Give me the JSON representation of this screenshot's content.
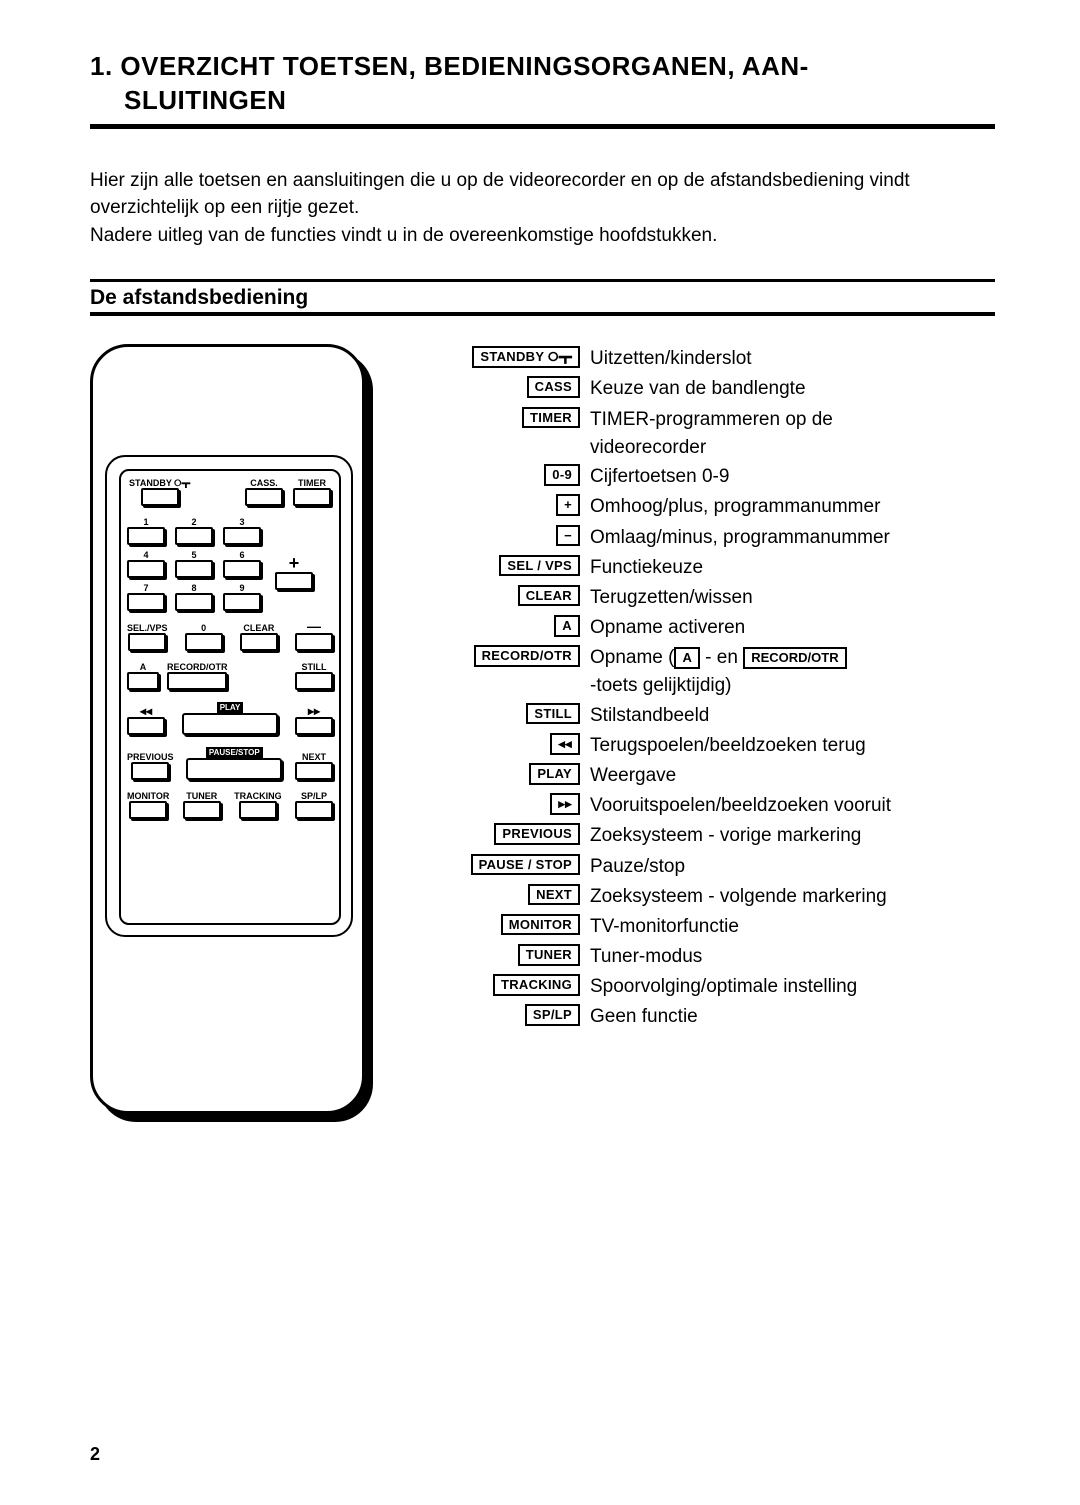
{
  "page_number": "2",
  "title_line1": "1. OVERZICHT TOETSEN, BEDIENINGSORGANEN, AAN-",
  "title_line2": "SLUITINGEN",
  "intro_p1": "Hier zijn alle toetsen en aansluitingen die u op de videorecorder en op de afstandsbediening vindt overzichtelijk op een rijtje gezet.",
  "intro_p2": "Nadere uitleg van de functies vindt u in de overeenkomstige hoofdstukken.",
  "subheading": "De afstandsbediening",
  "remote_labels": {
    "standby": "STANDBY ⭘┳",
    "cass": "CASS.",
    "timer": "TIMER",
    "plus": "+",
    "minus": "—",
    "selvps": "SEL./VPS",
    "clear": "CLEAR",
    "a": "A",
    "recordotr": "RECORD/OTR",
    "still": "STILL",
    "rew": "◂◂",
    "play": "PLAY",
    "ff": "▸▸",
    "previous": "PREVIOUS",
    "pausestop": "PAUSE/STOP",
    "next": "NEXT",
    "monitor": "MONITOR",
    "tuner": "TUNER",
    "tracking": "TRACKING",
    "splp": "SP/LP",
    "d0": "0",
    "d1": "1",
    "d2": "2",
    "d3": "3",
    "d4": "4",
    "d5": "5",
    "d6": "6",
    "d7": "7",
    "d8": "8",
    "d9": "9"
  },
  "legend": [
    {
      "key": "STANDBY ⭘┳",
      "desc": "Uitzetten/kinderslot"
    },
    {
      "key": "CASS",
      "desc": "Keuze van de bandlengte"
    },
    {
      "key": "TIMER",
      "desc": "TIMER-programmeren op de",
      "cont": "videorecorder"
    },
    {
      "key": "0-9",
      "desc": "Cijfertoetsen 0-9"
    },
    {
      "key": "+",
      "desc": "Omhoog/plus, programmanummer"
    },
    {
      "key": "−",
      "desc": "Omlaag/minus, programmanummer"
    },
    {
      "key": "SEL / VPS",
      "desc": "Functiekeuze"
    },
    {
      "key": "CLEAR",
      "desc": "Terugzetten/wissen"
    },
    {
      "key": "A",
      "desc": "Opname activeren"
    },
    {
      "key": "RECORD/OTR",
      "desc_pre": "Opname (",
      "inline1": "A",
      "desc_mid": " - en ",
      "inline2": "RECORD/OTR",
      "cont": "-toets gelijktijdig)"
    },
    {
      "key": "STILL",
      "desc": "Stilstandbeeld"
    },
    {
      "key": "◂◂",
      "desc": "Terugspoelen/beeldzoeken terug"
    },
    {
      "key": "PLAY",
      "desc": "Weergave"
    },
    {
      "key": "▸▸",
      "desc": "Vooruitspoelen/beeldzoeken vooruit"
    },
    {
      "key": "PREVIOUS",
      "desc": "Zoeksysteem - vorige markering"
    },
    {
      "key": "PAUSE / STOP",
      "desc": "Pauze/stop"
    },
    {
      "key": "NEXT",
      "desc": "Zoeksysteem - volgende markering"
    },
    {
      "key": "MONITOR",
      "desc": "TV-monitorfunctie"
    },
    {
      "key": "TUNER",
      "desc": "Tuner-modus"
    },
    {
      "key": "TRACKING",
      "desc": "Spoorvolging/optimale instelling"
    },
    {
      "key": "SP/LP",
      "desc": "Geen functie"
    }
  ]
}
